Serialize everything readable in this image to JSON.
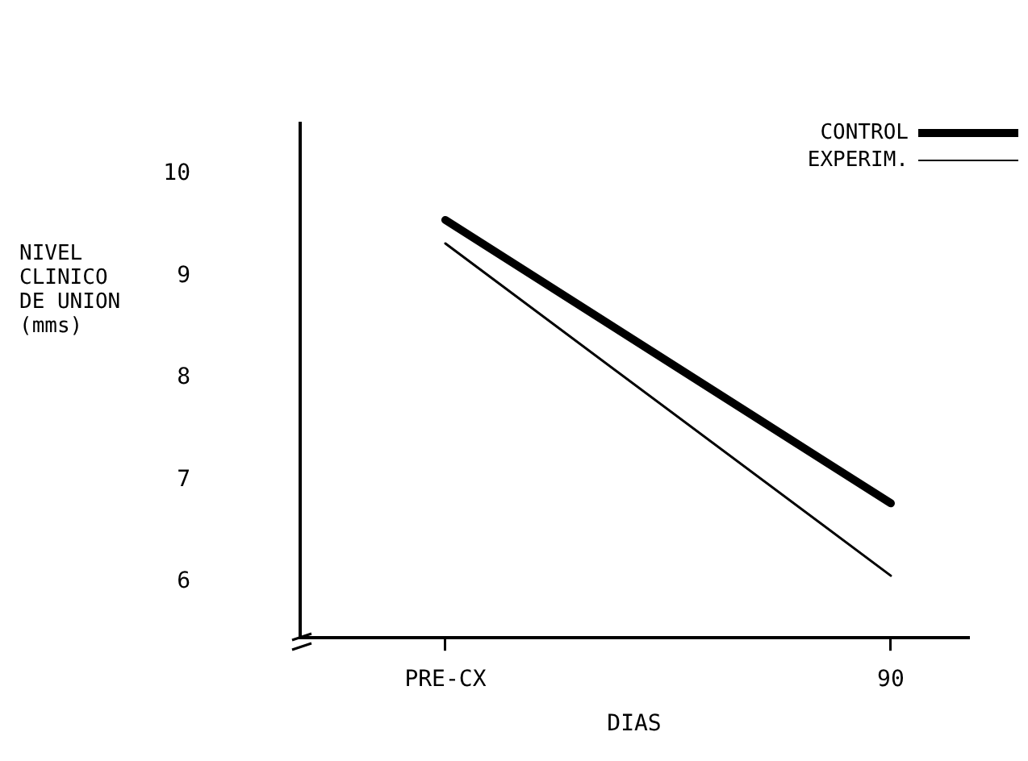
{
  "chart_data": {
    "type": "line",
    "xlabel": "DIAS",
    "ylabel": "NIVEL CLINICO DE UNION (mms)",
    "categories": [
      "PRE-CX",
      "90"
    ],
    "series": [
      {
        "name": "CONTROL",
        "color": "#000000",
        "values": [
          9.55,
          6.77
        ]
      },
      {
        "name": "EXPERIM.",
        "color": "#000000",
        "values": [
          9.32,
          6.06
        ]
      }
    ],
    "ylim": [
      5.45,
      10.5
    ],
    "yticks": [
      6,
      7,
      8,
      9,
      10
    ],
    "grid": false,
    "legend": "top right",
    "marker": "none",
    "line_style": "solid"
  }
}
